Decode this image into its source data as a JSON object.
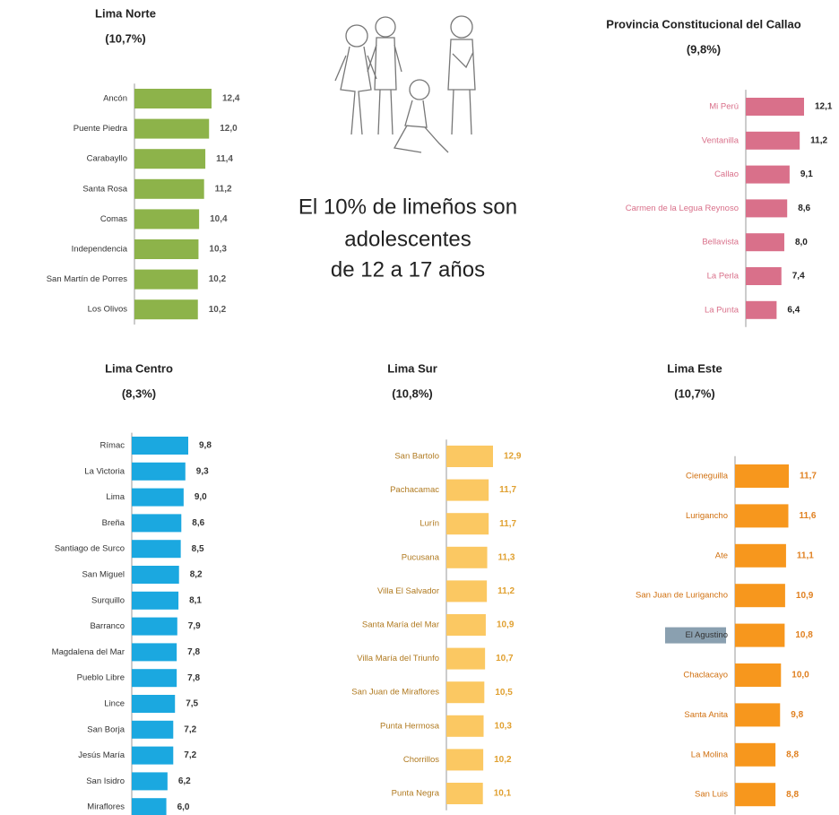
{
  "headline": [
    "El 10% de limeños son",
    "adolescentes",
    "de 12 a 17 años"
  ],
  "chart_data": [
    {
      "type": "bar",
      "orientation": "horizontal",
      "title": "Lima Norte",
      "subtitle": "(10,7%)",
      "color": "#8db34a",
      "categories": [
        "Ancón",
        "Puente Piedra",
        "Carabayllo",
        "Santa Rosa",
        "Comas",
        "Independencia",
        "San Martín de Porres",
        "Los Olivos"
      ],
      "values": [
        12.4,
        12.0,
        11.4,
        11.2,
        10.4,
        10.3,
        10.2,
        10.2
      ],
      "value_labels": [
        "12,4",
        "12,0",
        "11,4",
        "11,2",
        "10,4",
        "10,3",
        "10,2",
        "10,2"
      ]
    },
    {
      "type": "bar",
      "orientation": "horizontal",
      "title": "Provincia Constitucional del Callao",
      "subtitle": "(9,8%)",
      "color": "#d9708a",
      "categories": [
        "Mi Perú",
        "Ventanilla",
        "Callao",
        "Carmen de la Legua Reynoso",
        "Bellavista",
        "La Perla",
        "La Punta"
      ],
      "values": [
        12.1,
        11.2,
        9.1,
        8.6,
        8.0,
        7.4,
        6.4
      ],
      "value_labels": [
        "12,1",
        "11,2",
        "9,1",
        "8,6",
        "8,0",
        "7,4",
        "6,4"
      ]
    },
    {
      "type": "bar",
      "orientation": "horizontal",
      "title": "Lima Centro",
      "subtitle": "(8,3%)",
      "color": "#1ba8e0",
      "categories": [
        "Rímac",
        "La Victoria",
        "Lima",
        "Breña",
        "Santiago de Surco",
        "San Miguel",
        "Surquillo",
        "Barranco",
        "Magdalena del Mar",
        "Pueblo Libre",
        "Lince",
        "San Borja",
        "Jesús María",
        "San Isidro",
        "Miraflores"
      ],
      "values": [
        9.8,
        9.3,
        9.0,
        8.6,
        8.5,
        8.2,
        8.1,
        7.9,
        7.8,
        7.8,
        7.5,
        7.2,
        7.2,
        6.2,
        6.0
      ],
      "value_labels": [
        "9,8",
        "9,3",
        "9,0",
        "8,6",
        "8,5",
        "8,2",
        "8,1",
        "7,9",
        "7,8",
        "7,8",
        "7,5",
        "7,2",
        "7,2",
        "6,2",
        "6,0"
      ]
    },
    {
      "type": "bar",
      "orientation": "horizontal",
      "title": "Lima Sur",
      "subtitle": "(10,8%)",
      "color": "#fbc862",
      "categories": [
        "San Bartolo",
        "Pachacamac",
        "Lurín",
        "Pucusana",
        "Villa El Salvador",
        "Santa María del Mar",
        "Villa María del Triunfo",
        "San Juan de Miraflores",
        "Punta Hermosa",
        "Chorrillos",
        "Punta Negra"
      ],
      "values": [
        12.9,
        11.7,
        11.7,
        11.3,
        11.2,
        10.9,
        10.7,
        10.5,
        10.3,
        10.2,
        10.1
      ],
      "value_labels": [
        "12,9",
        "11,7",
        "11,7",
        "11,3",
        "11,2",
        "10,9",
        "10,7",
        "10,5",
        "10,3",
        "10,2",
        "10,1"
      ]
    },
    {
      "type": "bar",
      "orientation": "horizontal",
      "title": "Lima Este",
      "subtitle": "(10,7%)",
      "color": "#f7971d",
      "categories": [
        "Cieneguilla",
        "Lurigancho",
        "Ate",
        "San Juan de Lurigancho",
        "El Agustino",
        "Chaclacayo",
        "Santa Anita",
        "La Molina",
        "San Luis"
      ],
      "values": [
        11.7,
        11.6,
        11.1,
        10.9,
        10.8,
        10.0,
        9.8,
        8.8,
        8.8
      ],
      "value_labels": [
        "11,7",
        "11,6",
        "11,1",
        "10,9",
        "10,8",
        "10,0",
        "9,8",
        "8,8",
        "8,8"
      ]
    }
  ]
}
